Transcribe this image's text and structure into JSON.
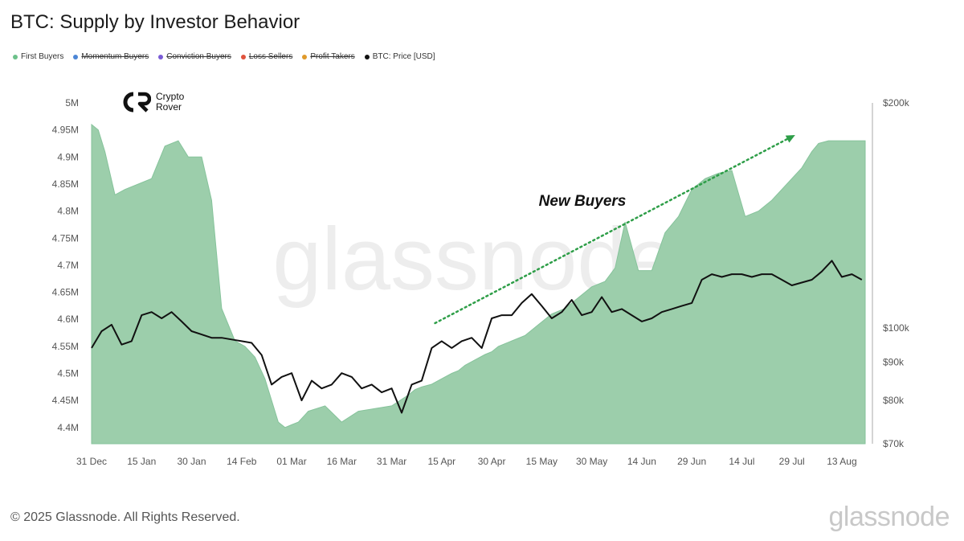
{
  "chart_data": {
    "type": "area",
    "title": "BTC: Supply by Investor Behavior",
    "legend": [
      {
        "name": "First Buyers",
        "color": "#6cc18a",
        "active": true
      },
      {
        "name": "Momentum Buyers",
        "color": "#4c86d6",
        "active": false
      },
      {
        "name": "Conviction Buyers",
        "color": "#7a5bd6",
        "active": false
      },
      {
        "name": "Loss Sellers",
        "color": "#e0533d",
        "active": false
      },
      {
        "name": "Profit Takers",
        "color": "#e09a2b",
        "active": false
      },
      {
        "name": "BTC: Price [USD]",
        "color": "#111111",
        "active": true
      }
    ],
    "x_labels": [
      "31 Dec",
      "15 Jan",
      "30 Jan",
      "14 Feb",
      "01 Mar",
      "16 Mar",
      "31 Mar",
      "15 Apr",
      "30 Apr",
      "15 May",
      "30 May",
      "14 Jun",
      "29 Jun",
      "14 Jul",
      "29 Jul",
      "13 Aug"
    ],
    "y_left": {
      "labels": [
        "5M",
        "4.95M",
        "4.9M",
        "4.85M",
        "4.8M",
        "4.75M",
        "4.7M",
        "4.65M",
        "4.6M",
        "4.55M",
        "4.5M",
        "4.45M",
        "4.4M"
      ],
      "range": [
        4.37,
        5.0
      ]
    },
    "y_right": {
      "labels": [
        "$200k",
        "$100k",
        "$90k",
        "$80k",
        "$70k"
      ],
      "values": [
        200000,
        100000,
        90000,
        80000,
        70000
      ],
      "scale": "log"
    },
    "series": [
      {
        "name": "First Buyers",
        "unit": "BTC (millions)",
        "x_day": [
          0,
          2,
          4,
          7,
          10,
          14,
          18,
          22,
          26,
          29,
          33,
          36,
          39,
          43,
          46,
          49,
          52,
          54,
          56,
          58,
          60,
          62,
          65,
          70,
          75,
          80,
          85,
          90,
          95,
          97,
          99,
          102,
          105,
          108,
          110,
          112,
          115,
          118,
          120,
          122,
          126,
          130,
          134,
          138,
          142,
          146,
          150,
          154,
          157,
          160,
          164,
          168,
          172,
          176,
          180,
          184,
          188,
          192,
          196,
          200,
          204,
          207,
          210,
          213,
          216,
          218,
          221,
          224,
          228,
          231,
          232
        ],
        "values": [
          4.96,
          4.95,
          4.91,
          4.83,
          4.84,
          4.85,
          4.86,
          4.92,
          4.93,
          4.9,
          4.9,
          4.82,
          4.62,
          4.56,
          4.55,
          4.53,
          4.49,
          4.45,
          4.41,
          4.4,
          4.405,
          4.41,
          4.43,
          4.44,
          4.41,
          4.43,
          4.435,
          4.44,
          4.46,
          4.47,
          4.475,
          4.48,
          4.49,
          4.5,
          4.505,
          4.515,
          4.525,
          4.535,
          4.54,
          4.55,
          4.56,
          4.57,
          4.59,
          4.61,
          4.62,
          4.64,
          4.66,
          4.67,
          4.695,
          4.78,
          4.69,
          4.69,
          4.76,
          4.79,
          4.84,
          4.86,
          4.87,
          4.875,
          4.79,
          4.8,
          4.82,
          4.84,
          4.86,
          4.88,
          4.91,
          4.925,
          4.93,
          4.93,
          4.93,
          4.93,
          4.93
        ]
      },
      {
        "name": "BTC: Price [USD]",
        "unit": "USD",
        "x_day": [
          0,
          3,
          6,
          9,
          12,
          15,
          18,
          21,
          24,
          27,
          30,
          33,
          36,
          39,
          42,
          45,
          48,
          51,
          54,
          57,
          60,
          63,
          66,
          69,
          72,
          75,
          78,
          81,
          84,
          87,
          90,
          93,
          96,
          99,
          102,
          105,
          108,
          111,
          114,
          117,
          120,
          123,
          126,
          129,
          132,
          135,
          138,
          141,
          144,
          147,
          150,
          153,
          156,
          159,
          162,
          165,
          168,
          171,
          174,
          177,
          180,
          183,
          186,
          189,
          192,
          195,
          198,
          201,
          204,
          207,
          210,
          213,
          216,
          219,
          222,
          225,
          228,
          231
        ],
        "values": [
          94000,
          99000,
          101000,
          95000,
          96000,
          104000,
          105000,
          103000,
          105000,
          102000,
          99000,
          98000,
          97000,
          97000,
          96500,
          96000,
          95500,
          92000,
          84000,
          86000,
          87000,
          80000,
          85000,
          83000,
          84000,
          87000,
          86000,
          83000,
          84000,
          82000,
          83000,
          77000,
          84000,
          85000,
          94000,
          96000,
          94000,
          96000,
          97000,
          94000,
          103000,
          104000,
          104000,
          108000,
          111000,
          107000,
          103000,
          105000,
          109000,
          104000,
          105000,
          110000,
          105000,
          106000,
          104000,
          102000,
          103000,
          105000,
          106000,
          107000,
          108000,
          116000,
          118000,
          117000,
          118000,
          118000,
          117000,
          118000,
          118000,
          116000,
          114000,
          115000,
          116000,
          119000,
          123000,
          117000,
          118000,
          116000
        ]
      }
    ],
    "annotation": {
      "text": "New Buyers",
      "arrow_from_day": 103,
      "arrow_to_day": 211
    },
    "watermark": "glassnode"
  },
  "logo": {
    "line1": "Crypto",
    "line2": "Rover"
  },
  "footer": {
    "copyright": "© 2025 Glassnode. All Rights Reserved.",
    "brand": "glassnode"
  }
}
